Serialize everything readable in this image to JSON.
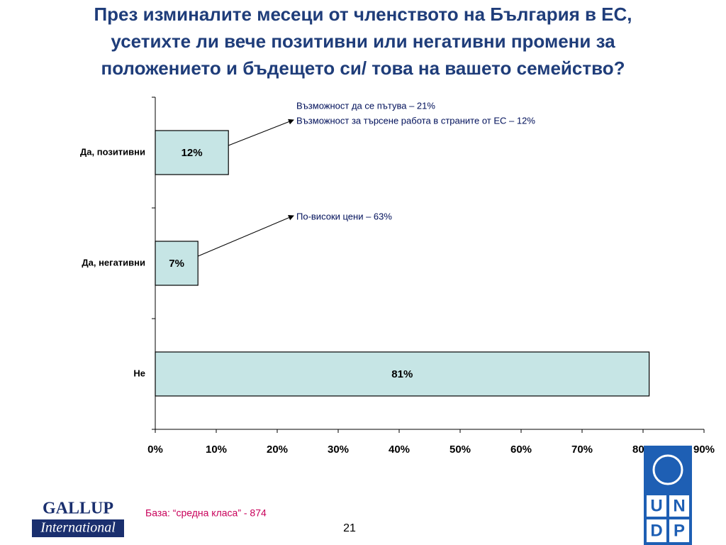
{
  "chart_data": {
    "type": "bar",
    "orientation": "horizontal",
    "title_lines": [
      "През изминалите месеци от членството на България в ЕС,",
      "усетихте ли вече позитивни или негативни промени за",
      "положението и бъдещето си/ това на вашето семейство?"
    ],
    "categories": [
      "Да, позитивни",
      "Да, негативни",
      "Не"
    ],
    "values": [
      12,
      7,
      81
    ],
    "value_labels": [
      "12%",
      "7%",
      "81%"
    ],
    "color": "#c6e5e5",
    "xlim": [
      0,
      90
    ],
    "xticks": [
      {
        "value": 0,
        "label": "0%"
      },
      {
        "value": 10,
        "label": "10%"
      },
      {
        "value": 20,
        "label": "20%"
      },
      {
        "value": 30,
        "label": "30%"
      },
      {
        "value": 40,
        "label": "40%"
      },
      {
        "value": 50,
        "label": "50%"
      },
      {
        "value": 60,
        "label": "60%"
      },
      {
        "value": 70,
        "label": "70%"
      },
      {
        "value": 80,
        "label": "80%"
      },
      {
        "value": 90,
        "label": "90%"
      }
    ],
    "annotations": [
      {
        "category": 0,
        "lines": [
          "Възможност да се пътува – 21%",
          "Възможност за търсене работа в страните от ЕС – 12%"
        ]
      },
      {
        "category": 1,
        "lines": [
          "По-високи цени – 63%"
        ]
      }
    ],
    "note": "База: “средна класа” - 874",
    "page_number": "21"
  },
  "logos": {
    "gallup": [
      "GALLUP",
      "International"
    ],
    "undp": [
      "U",
      "N",
      "D",
      "P"
    ]
  }
}
